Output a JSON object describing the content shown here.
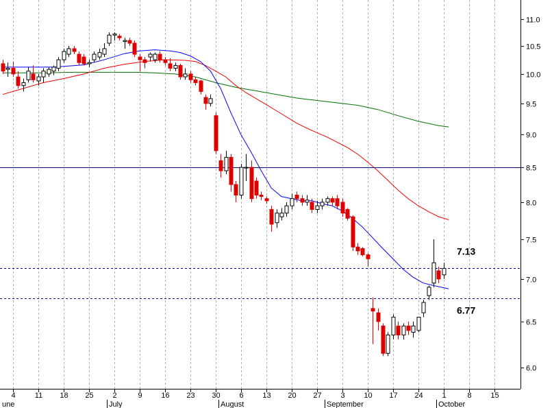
{
  "chart_data": {
    "type": "candlestick",
    "y_scale": "log",
    "ylim": [
      5.85,
      11.3
    ],
    "y_ticks": [
      "6.0",
      "6.5",
      "7.0",
      "7.5",
      "8.0",
      "8.5",
      "9.0",
      "9.5",
      "10.0",
      "10.5",
      "11.0"
    ],
    "x_day_ticks": [
      "4",
      "11",
      "18",
      "25",
      "2",
      "9",
      "16",
      "23",
      "30",
      "6",
      "13",
      "20",
      "27",
      "3",
      "10",
      "17",
      "24",
      "1",
      "8",
      "15"
    ],
    "x_month_labels": [
      "une",
      "July",
      "August",
      "September",
      "October"
    ],
    "horizontal_lines": [
      {
        "value": 8.5,
        "style": "solid",
        "color": "#000080"
      },
      {
        "value": 7.13,
        "style": "dashed",
        "color": "#000080",
        "label": "7.13"
      },
      {
        "value": 6.77,
        "style": "dashed",
        "color": "#000080",
        "label": "6.77"
      }
    ],
    "colors": {
      "up": "#ffffff",
      "down": "#dd0000",
      "grid": "#b0b0b0",
      "ma_short": "#0000ff",
      "ma_mid": "#ee0000",
      "ma_long": "#007000"
    },
    "candles": [
      {
        "date": "Jun 2",
        "o": 10.18,
        "h": 10.25,
        "l": 10.0,
        "c": 10.05
      },
      {
        "date": "Jun 3",
        "o": 10.08,
        "h": 10.2,
        "l": 9.95,
        "c": 10.1
      },
      {
        "date": "Jun 4",
        "o": 10.1,
        "h": 10.22,
        "l": 9.95,
        "c": 10.0
      },
      {
        "date": "Jun 5",
        "o": 9.95,
        "h": 10.05,
        "l": 9.75,
        "c": 9.8
      },
      {
        "date": "Jun 6",
        "o": 9.8,
        "h": 9.92,
        "l": 9.7,
        "c": 9.85
      },
      {
        "date": "Jun 9",
        "o": 9.9,
        "h": 10.12,
        "l": 9.85,
        "c": 10.05
      },
      {
        "date": "Jun 10",
        "o": 10.0,
        "h": 10.15,
        "l": 9.85,
        "c": 9.9
      },
      {
        "date": "Jun 11",
        "o": 9.88,
        "h": 10.0,
        "l": 9.8,
        "c": 9.95
      },
      {
        "date": "Jun 12",
        "o": 9.95,
        "h": 10.1,
        "l": 9.85,
        "c": 10.05
      },
      {
        "date": "Jun 13",
        "o": 10.0,
        "h": 10.12,
        "l": 9.95,
        "c": 10.08
      },
      {
        "date": "Jun 16",
        "o": 10.05,
        "h": 10.15,
        "l": 9.98,
        "c": 10.12
      },
      {
        "date": "Jun 17",
        "o": 10.1,
        "h": 10.3,
        "l": 10.05,
        "c": 10.25
      },
      {
        "date": "Jun 18",
        "o": 10.25,
        "h": 10.45,
        "l": 10.2,
        "c": 10.4
      },
      {
        "date": "Jun 19",
        "o": 10.35,
        "h": 10.5,
        "l": 10.3,
        "c": 10.45
      },
      {
        "date": "Jun 20",
        "o": 10.45,
        "h": 10.5,
        "l": 10.35,
        "c": 10.4
      },
      {
        "date": "Jun 23",
        "o": 10.35,
        "h": 10.4,
        "l": 10.15,
        "c": 10.2
      },
      {
        "date": "Jun 24",
        "o": 10.3,
        "h": 10.35,
        "l": 10.15,
        "c": 10.18
      },
      {
        "date": "Jun 25",
        "o": 10.18,
        "h": 10.25,
        "l": 10.12,
        "c": 10.2
      },
      {
        "date": "Jun 26",
        "o": 10.25,
        "h": 10.4,
        "l": 10.2,
        "c": 10.35
      },
      {
        "date": "Jun 27",
        "o": 10.3,
        "h": 10.45,
        "l": 10.25,
        "c": 10.38
      },
      {
        "date": "Jun 30",
        "o": 10.35,
        "h": 10.55,
        "l": 10.3,
        "c": 10.45
      },
      {
        "date": "Jul 1",
        "o": 10.55,
        "h": 10.75,
        "l": 10.5,
        "c": 10.7
      },
      {
        "date": "Jul 2",
        "o": 10.7,
        "h": 10.75,
        "l": 10.6,
        "c": 10.72
      },
      {
        "date": "Jul 3",
        "o": 10.68,
        "h": 10.72,
        "l": 10.6,
        "c": 10.65
      },
      {
        "date": "Jul 7",
        "o": 10.58,
        "h": 10.65,
        "l": 10.45,
        "c": 10.6
      },
      {
        "date": "Jul 8",
        "o": 10.6,
        "h": 10.65,
        "l": 10.5,
        "c": 10.55
      },
      {
        "date": "Jul 9",
        "o": 10.55,
        "h": 10.6,
        "l": 10.3,
        "c": 10.35
      },
      {
        "date": "Jul 10",
        "o": 10.3,
        "h": 10.35,
        "l": 10.05,
        "c": 10.25
      },
      {
        "date": "Jul 11",
        "o": 10.25,
        "h": 10.3,
        "l": 10.1,
        "c": 10.2
      },
      {
        "date": "Jul 14",
        "o": 10.3,
        "h": 10.38,
        "l": 10.22,
        "c": 10.35
      },
      {
        "date": "Jul 15",
        "o": 10.25,
        "h": 10.38,
        "l": 10.2,
        "c": 10.35
      },
      {
        "date": "Jul 16",
        "o": 10.35,
        "h": 10.4,
        "l": 10.2,
        "c": 10.25
      },
      {
        "date": "Jul 17",
        "o": 10.25,
        "h": 10.3,
        "l": 10.15,
        "c": 10.2
      },
      {
        "date": "Jul 18",
        "o": 10.18,
        "h": 10.28,
        "l": 10.05,
        "c": 10.1
      },
      {
        "date": "Jul 21",
        "o": 10.1,
        "h": 10.2,
        "l": 10.05,
        "c": 10.15
      },
      {
        "date": "Jul 22",
        "o": 10.15,
        "h": 10.18,
        "l": 9.9,
        "c": 9.95
      },
      {
        "date": "Jul 23",
        "o": 9.95,
        "h": 10.1,
        "l": 9.9,
        "c": 10.0
      },
      {
        "date": "Jul 24",
        "o": 10.0,
        "h": 10.05,
        "l": 9.85,
        "c": 9.9
      },
      {
        "date": "Jul 25",
        "o": 9.9,
        "h": 9.95,
        "l": 9.8,
        "c": 9.85
      },
      {
        "date": "Jul 28",
        "o": 9.88,
        "h": 9.9,
        "l": 9.65,
        "c": 9.7
      },
      {
        "date": "Jul 29",
        "o": 9.6,
        "h": 9.65,
        "l": 9.4,
        "c": 9.5
      },
      {
        "date": "Jul 30",
        "o": 9.5,
        "h": 9.65,
        "l": 9.45,
        "c": 9.58
      },
      {
        "date": "Jul 31",
        "o": 9.3,
        "h": 9.35,
        "l": 8.7,
        "c": 8.75
      },
      {
        "date": "Aug 1",
        "o": 8.6,
        "h": 8.7,
        "l": 8.35,
        "c": 8.45
      },
      {
        "date": "Aug 4",
        "o": 8.45,
        "h": 8.75,
        "l": 8.4,
        "c": 8.65
      },
      {
        "date": "Aug 5",
        "o": 8.65,
        "h": 8.7,
        "l": 8.15,
        "c": 8.25
      },
      {
        "date": "Aug 6",
        "o": 8.25,
        "h": 8.3,
        "l": 8.0,
        "c": 8.1
      },
      {
        "date": "Aug 7",
        "o": 8.1,
        "h": 8.55,
        "l": 8.05,
        "c": 8.5
      },
      {
        "date": "Aug 8",
        "o": 8.5,
        "h": 8.7,
        "l": 8.3,
        "c": 8.5
      },
      {
        "date": "Aug 11",
        "o": 8.5,
        "h": 8.6,
        "l": 8.0,
        "c": 8.05
      },
      {
        "date": "Aug 12",
        "o": 8.3,
        "h": 8.35,
        "l": 8.05,
        "c": 8.1
      },
      {
        "date": "Aug 13",
        "o": 8.1,
        "h": 8.15,
        "l": 8.03,
        "c": 8.08
      },
      {
        "date": "Aug 14",
        "o": 8.05,
        "h": 8.08,
        "l": 7.98,
        "c": 8.02
      },
      {
        "date": "Aug 15",
        "o": 7.9,
        "h": 7.95,
        "l": 7.6,
        "c": 7.7
      },
      {
        "date": "Aug 18",
        "o": 7.72,
        "h": 7.9,
        "l": 7.65,
        "c": 7.85
      },
      {
        "date": "Aug 19",
        "o": 7.8,
        "h": 7.92,
        "l": 7.75,
        "c": 7.85
      },
      {
        "date": "Aug 20",
        "o": 7.85,
        "h": 8.0,
        "l": 7.8,
        "c": 7.95
      },
      {
        "date": "Aug 21",
        "o": 7.95,
        "h": 8.12,
        "l": 7.9,
        "c": 8.05
      },
      {
        "date": "Aug 22",
        "o": 8.1,
        "h": 8.15,
        "l": 8.0,
        "c": 8.05
      },
      {
        "date": "Aug 25",
        "o": 8.05,
        "h": 8.1,
        "l": 7.95,
        "c": 8.0
      },
      {
        "date": "Aug 26",
        "o": 8.0,
        "h": 8.1,
        "l": 7.95,
        "c": 8.03
      },
      {
        "date": "Aug 27",
        "o": 8.0,
        "h": 8.05,
        "l": 7.85,
        "c": 7.9
      },
      {
        "date": "Aug 28",
        "o": 7.9,
        "h": 8.02,
        "l": 7.85,
        "c": 7.95
      },
      {
        "date": "Aug 29",
        "o": 7.95,
        "h": 8.05,
        "l": 7.9,
        "c": 8.0
      },
      {
        "date": "Sep 1",
        "o": 8.0,
        "h": 8.08,
        "l": 7.95,
        "c": 8.05
      },
      {
        "date": "Sep 2",
        "o": 8.05,
        "h": 8.08,
        "l": 7.95,
        "c": 8.0
      },
      {
        "date": "Sep 3",
        "o": 8.05,
        "h": 8.1,
        "l": 7.9,
        "c": 7.95
      },
      {
        "date": "Sep 4",
        "o": 8.0,
        "h": 8.05,
        "l": 7.8,
        "c": 7.85
      },
      {
        "date": "Sep 5",
        "o": 7.9,
        "h": 7.92,
        "l": 7.75,
        "c": 7.78
      },
      {
        "date": "Sep 8",
        "o": 7.8,
        "h": 7.82,
        "l": 7.35,
        "c": 7.4
      },
      {
        "date": "Sep 9",
        "o": 7.4,
        "h": 7.45,
        "l": 7.3,
        "c": 7.35
      },
      {
        "date": "Sep 10",
        "o": 7.38,
        "h": 7.4,
        "l": 7.28,
        "c": 7.3
      },
      {
        "date": "Sep 11",
        "o": 7.3,
        "h": 7.32,
        "l": 7.15,
        "c": 7.25
      },
      {
        "date": "Sep 12",
        "o": 6.65,
        "h": 6.78,
        "l": 6.25,
        "c": 6.62
      },
      {
        "date": "Sep 15",
        "o": 6.6,
        "h": 6.65,
        "l": 6.4,
        "c": 6.5
      },
      {
        "date": "Sep 16",
        "o": 6.45,
        "h": 6.48,
        "l": 6.12,
        "c": 6.15
      },
      {
        "date": "Sep 17",
        "o": 6.15,
        "h": 6.38,
        "l": 6.12,
        "c": 6.35
      },
      {
        "date": "Sep 18",
        "o": 6.35,
        "h": 6.58,
        "l": 6.3,
        "c": 6.55
      },
      {
        "date": "Sep 19",
        "o": 6.45,
        "h": 6.5,
        "l": 6.3,
        "c": 6.35
      },
      {
        "date": "Sep 22",
        "o": 6.35,
        "h": 6.48,
        "l": 6.3,
        "c": 6.45
      },
      {
        "date": "Sep 23",
        "o": 6.45,
        "h": 6.5,
        "l": 6.35,
        "c": 6.4
      },
      {
        "date": "Sep 24",
        "o": 6.38,
        "h": 6.5,
        "l": 6.32,
        "c": 6.45
      },
      {
        "date": "Sep 25",
        "o": 6.4,
        "h": 6.55,
        "l": 6.38,
        "c": 6.55
      },
      {
        "date": "Sep 26",
        "o": 6.6,
        "h": 6.75,
        "l": 6.55,
        "c": 6.72
      },
      {
        "date": "Sep 29",
        "o": 6.8,
        "h": 6.92,
        "l": 6.75,
        "c": 6.9
      },
      {
        "date": "Sep 30",
        "o": 6.95,
        "h": 7.5,
        "l": 6.9,
        "c": 7.2
      },
      {
        "date": "Oct 1",
        "o": 7.1,
        "h": 7.15,
        "l": 6.95,
        "c": 7.0
      },
      {
        "date": "Oct 2",
        "o": 7.05,
        "h": 7.2,
        "l": 7.0,
        "c": 7.13
      }
    ],
    "ma_short": [
      [
        0,
        10.12
      ],
      [
        6,
        10.12
      ],
      [
        10,
        10.12
      ],
      [
        16,
        10.16
      ],
      [
        20,
        10.25
      ],
      [
        24,
        10.36
      ],
      [
        27,
        10.41
      ],
      [
        30,
        10.43
      ],
      [
        33,
        10.41
      ],
      [
        35,
        10.38
      ],
      [
        37,
        10.32
      ],
      [
        39,
        10.22
      ],
      [
        41,
        10.05
      ],
      [
        43,
        9.75
      ],
      [
        45,
        9.35
      ],
      [
        47,
        9.0
      ],
      [
        49,
        8.73
      ],
      [
        51,
        8.45
      ],
      [
        53,
        8.2
      ],
      [
        55,
        8.08
      ],
      [
        57,
        8.05
      ],
      [
        59,
        8.02
      ],
      [
        61,
        8.02
      ],
      [
        63,
        7.98
      ],
      [
        65,
        7.95
      ],
      [
        67,
        7.88
      ],
      [
        69,
        7.78
      ],
      [
        71,
        7.66
      ],
      [
        73,
        7.52
      ],
      [
        75,
        7.38
      ],
      [
        77,
        7.25
      ],
      [
        79,
        7.12
      ],
      [
        81,
        7.02
      ],
      [
        83,
        6.95
      ],
      [
        85,
        6.92
      ],
      [
        88,
        6.88
      ]
    ],
    "ma_mid": [
      [
        0,
        9.65
      ],
      [
        4,
        9.75
      ],
      [
        8,
        9.85
      ],
      [
        12,
        9.92
      ],
      [
        16,
        10.0
      ],
      [
        20,
        10.1
      ],
      [
        24,
        10.17
      ],
      [
        28,
        10.22
      ],
      [
        32,
        10.25
      ],
      [
        36,
        10.24
      ],
      [
        38,
        10.22
      ],
      [
        40,
        10.15
      ],
      [
        42,
        10.05
      ],
      [
        44,
        9.95
      ],
      [
        46,
        9.8
      ],
      [
        48,
        9.68
      ],
      [
        50,
        9.58
      ],
      [
        52,
        9.48
      ],
      [
        54,
        9.38
      ],
      [
        56,
        9.28
      ],
      [
        58,
        9.18
      ],
      [
        60,
        9.1
      ],
      [
        62,
        9.03
      ],
      [
        64,
        8.96
      ],
      [
        66,
        8.88
      ],
      [
        68,
        8.8
      ],
      [
        70,
        8.7
      ],
      [
        72,
        8.58
      ],
      [
        74,
        8.45
      ],
      [
        76,
        8.31
      ],
      [
        78,
        8.17
      ],
      [
        80,
        8.05
      ],
      [
        82,
        7.95
      ],
      [
        84,
        7.87
      ],
      [
        86,
        7.8
      ],
      [
        88,
        7.76
      ]
    ],
    "ma_long": [
      [
        0,
        10.02
      ],
      [
        8,
        10.02
      ],
      [
        14,
        10.03
      ],
      [
        20,
        10.03
      ],
      [
        26,
        10.03
      ],
      [
        30,
        10.02
      ],
      [
        34,
        10.0
      ],
      [
        38,
        9.95
      ],
      [
        42,
        9.85
      ],
      [
        46,
        9.77
      ],
      [
        50,
        9.71
      ],
      [
        54,
        9.65
      ],
      [
        58,
        9.59
      ],
      [
        62,
        9.55
      ],
      [
        66,
        9.51
      ],
      [
        70,
        9.47
      ],
      [
        74,
        9.4
      ],
      [
        78,
        9.3
      ],
      [
        82,
        9.21
      ],
      [
        86,
        9.14
      ],
      [
        88,
        9.12
      ]
    ]
  }
}
